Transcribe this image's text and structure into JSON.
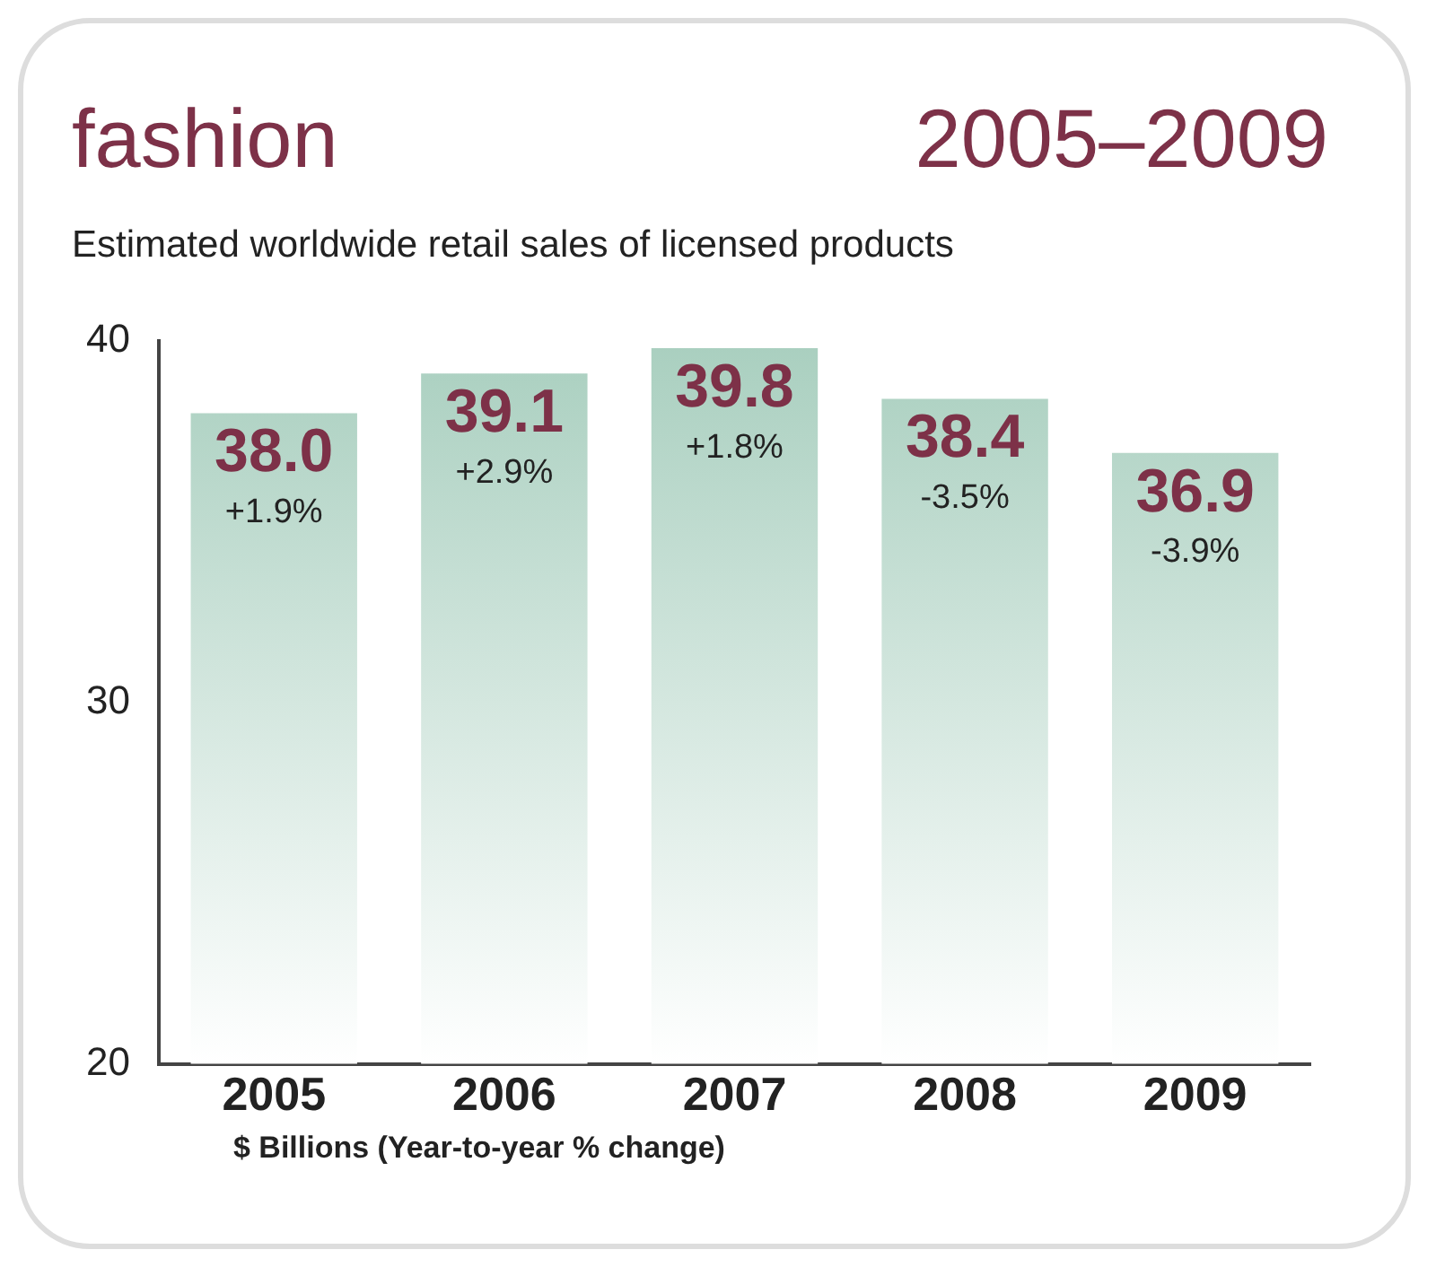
{
  "chart_data": {
    "type": "bar",
    "title": "fashion",
    "subtitle": "Estimated worldwide retail sales of licensed products",
    "categories": [
      "2005",
      "2006",
      "2007",
      "2008",
      "2009"
    ],
    "values": [
      38.0,
      39.1,
      39.8,
      38.4,
      36.9
    ],
    "value_labels": [
      "38.0",
      "39.1",
      "39.8",
      "38.4",
      "36.9"
    ],
    "color": "#a9cfbf",
    "ylim": [
      20,
      40
    ],
    "yticks": [
      20,
      30,
      40
    ],
    "grid": false,
    "legend": false,
    "annotations": [
      "2005–2009",
      {
        "text": "+1.9%",
        "x": "2005",
        "y": 38.0
      },
      {
        "text": "+2.9%",
        "x": "2006",
        "y": 39.1
      },
      {
        "text": "+1.8%",
        "x": "2007",
        "y": 39.8
      },
      {
        "text": "-3.5%",
        "x": "2008",
        "y": 38.4
      },
      {
        "text": "-3.9%",
        "x": "2009",
        "y": 36.9
      },
      "$ Billions (Year-to-year % change)"
    ]
  }
}
